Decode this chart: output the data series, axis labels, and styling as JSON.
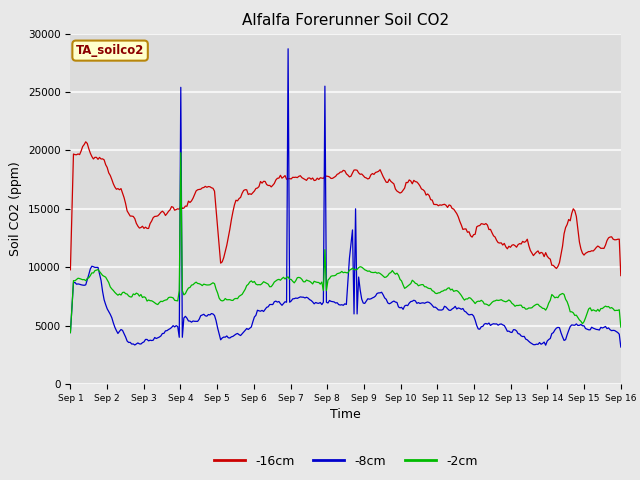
{
  "title": "Alfalfa Forerunner Soil CO2",
  "xlabel": "Time",
  "ylabel": "Soil CO2 (ppm)",
  "annotation": "TA_soilco2",
  "ylim": [
    0,
    30000
  ],
  "yticks": [
    0,
    5000,
    10000,
    15000,
    20000,
    25000,
    30000
  ],
  "xtick_labels": [
    "Sep 1",
    "Sep 2",
    "Sep 3",
    "Sep 4",
    "Sep 5",
    "Sep 6",
    "Sep 7",
    "Sep 8",
    "Sep 9",
    "Sep 10",
    "Sep 11",
    "Sep 12",
    "Sep 13",
    "Sep 14",
    "Sep 15",
    "Sep 16"
  ],
  "colors": {
    "red": "#cc0000",
    "blue": "#0000cc",
    "green": "#00bb00"
  },
  "legend": [
    "-16cm",
    "-8cm",
    "-2cm"
  ],
  "fig_bg": "#e8e8e8",
  "plot_bg": "#dcdcdc",
  "grid_color": "#f5f5f5"
}
